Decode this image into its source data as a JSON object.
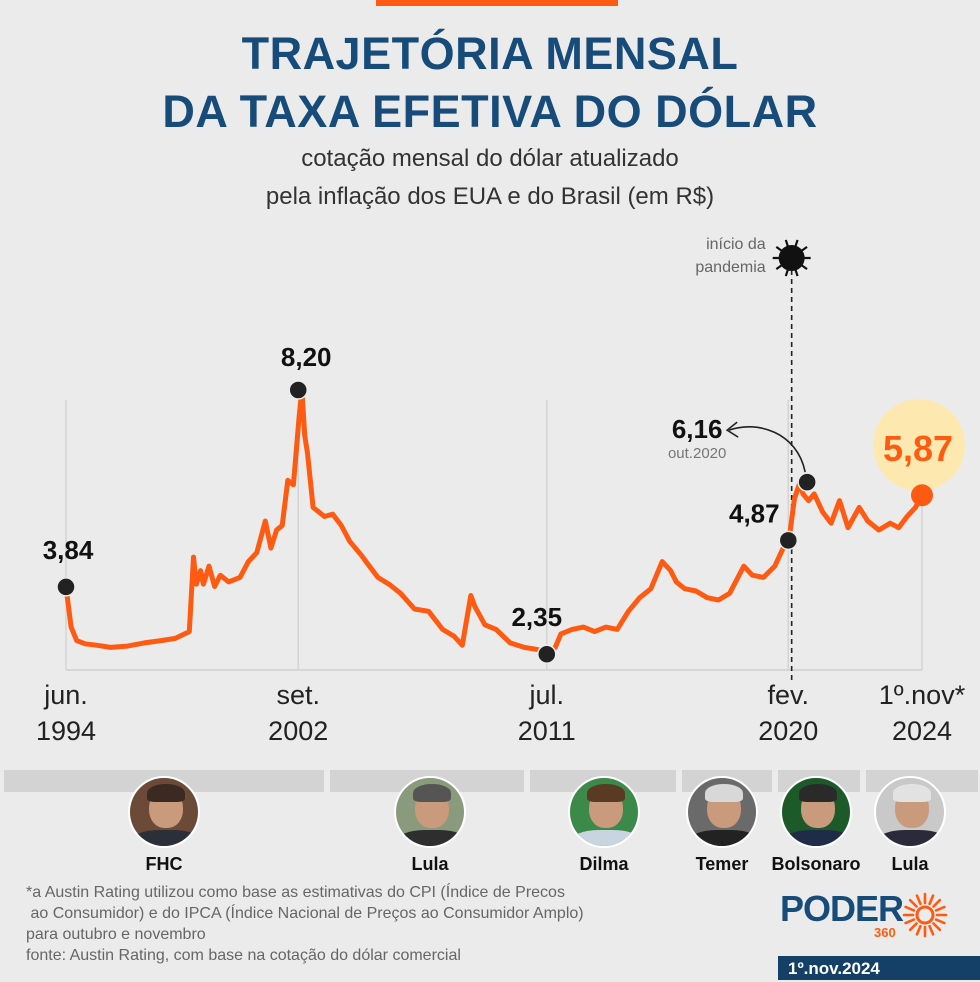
{
  "header": {
    "title_line1": "TRAJETÓRIA MENSAL",
    "title_line2": "DA TAXA EFETIVA DO DÓLAR",
    "subtitle_line1": "cotação mensal do dólar atualizado",
    "subtitle_line2": "pela inflação dos EUA e do Brasil (em R$)"
  },
  "colors": {
    "accent": "#ff5a12",
    "title": "#174c7a",
    "highlight": "#fde9b0"
  },
  "chart_data": {
    "type": "line",
    "title": "Trajetória mensal da taxa efetiva do dólar",
    "ylabel": "R$",
    "ylim": [
      1.5,
      8.5
    ],
    "x_start": 1994.42,
    "x_end": 2024.83,
    "series": [
      {
        "name": "taxa efetiva do dólar",
        "x": [
          1994.42,
          1994.6,
          1994.8,
          1995.1,
          1995.5,
          1996.0,
          1996.6,
          1997.2,
          1997.8,
          1998.3,
          1998.8,
          1998.95,
          1999.05,
          1999.2,
          1999.3,
          1999.5,
          1999.7,
          1999.9,
          2000.2,
          2000.6,
          2000.9,
          2001.2,
          2001.5,
          2001.7,
          2001.9,
          2002.1,
          2002.3,
          2002.5,
          2002.7,
          2002.8,
          2002.9,
          2003.0,
          2003.2,
          2003.4,
          2003.6,
          2003.9,
          2004.2,
          2004.5,
          2004.9,
          2005.2,
          2005.5,
          2005.9,
          2006.3,
          2006.8,
          2007.3,
          2007.8,
          2008.2,
          2008.5,
          2008.8,
          2008.95,
          2009.3,
          2009.7,
          2010.2,
          2010.7,
          2011.2,
          2011.58,
          2011.8,
          2012.0,
          2012.4,
          2012.8,
          2013.2,
          2013.6,
          2014.0,
          2014.4,
          2014.8,
          2015.2,
          2015.6,
          2015.9,
          2016.1,
          2016.4,
          2016.8,
          2017.2,
          2017.6,
          2018.0,
          2018.5,
          2018.8,
          2019.2,
          2019.6,
          2019.9,
          2020.1,
          2020.3,
          2020.5,
          2020.6,
          2020.8,
          2021.0,
          2021.3,
          2021.6,
          2021.9,
          2022.2,
          2022.6,
          2022.9,
          2023.3,
          2023.7,
          2024.0,
          2024.3,
          2024.6,
          2024.83
        ],
        "values": [
          3.84,
          2.95,
          2.65,
          2.58,
          2.55,
          2.5,
          2.53,
          2.6,
          2.65,
          2.7,
          2.85,
          4.5,
          3.9,
          4.2,
          3.9,
          4.3,
          3.85,
          4.1,
          3.95,
          4.05,
          4.4,
          4.6,
          5.3,
          4.7,
          5.1,
          5.2,
          6.2,
          6.1,
          7.6,
          8.2,
          7.2,
          6.8,
          5.6,
          5.5,
          5.4,
          5.45,
          5.2,
          4.85,
          4.55,
          4.3,
          4.05,
          3.9,
          3.7,
          3.35,
          3.3,
          2.9,
          2.75,
          2.55,
          3.65,
          3.4,
          3.0,
          2.9,
          2.6,
          2.5,
          2.45,
          2.35,
          2.5,
          2.8,
          2.9,
          2.95,
          2.85,
          2.95,
          2.9,
          3.3,
          3.6,
          3.8,
          4.4,
          4.2,
          3.95,
          3.8,
          3.75,
          3.6,
          3.55,
          3.7,
          4.3,
          4.1,
          4.05,
          4.3,
          4.7,
          4.87,
          5.8,
          6.16,
          5.9,
          5.75,
          5.9,
          5.5,
          5.25,
          5.75,
          5.15,
          5.6,
          5.3,
          5.1,
          5.25,
          5.15,
          5.4,
          5.6,
          5.87
        ]
      }
    ],
    "annotations": [
      {
        "label": "3,84",
        "x": 1994.42,
        "value": 3.84
      },
      {
        "label": "8,20",
        "x": 2002.67,
        "value": 8.2
      },
      {
        "label": "2,35",
        "x": 2011.5,
        "value": 2.35
      },
      {
        "label": "4,87",
        "x": 2020.08,
        "value": 4.87
      },
      {
        "label": "6,16",
        "sublabel": "out.2020",
        "x": 2020.75,
        "value": 6.16
      },
      {
        "label": "5,87",
        "x": 2024.83,
        "value": 5.87
      }
    ],
    "x_ticks": [
      {
        "line1": "jun.",
        "line2": "1994",
        "x": 1994.42
      },
      {
        "line1": "set.",
        "line2": "2002",
        "x": 2002.67
      },
      {
        "line1": "jul.",
        "line2": "2011",
        "x": 2011.5
      },
      {
        "line1": "fev.",
        "line2": "2020",
        "x": 2020.08
      },
      {
        "line1": "1º.nov*",
        "line2": "2024",
        "x": 2024.83
      }
    ],
    "event": {
      "line1": "início da",
      "line2": "pandemia",
      "x": 2020.2
    }
  },
  "presidents": [
    {
      "name": "FHC"
    },
    {
      "name": "Lula"
    },
    {
      "name": "Dilma"
    },
    {
      "name": "Temer"
    },
    {
      "name": "Bolsonaro"
    },
    {
      "name": "Lula"
    }
  ],
  "footnote": {
    "line1": "*a Austin Rating utilizou como base as estimativas do CPI (Índice de Precos",
    "line2": " ao Consumidor) e do IPCA (Índice Nacional de Preços ao Consumidor Amplo)",
    "line3": "para outubro e novembro",
    "line4": "fonte: Austin Rating, com base na cotação do dólar comercial"
  },
  "brand": {
    "name": "PODER",
    "sub": "360",
    "date": "1º.nov.2024"
  }
}
